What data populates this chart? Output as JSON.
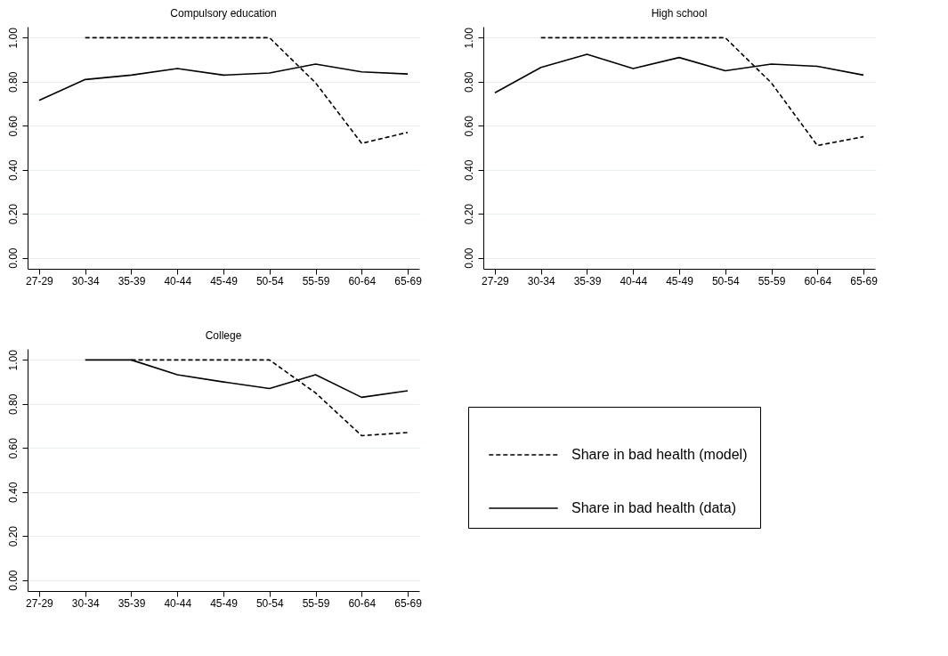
{
  "chart_data": [
    {
      "type": "line",
      "title": "Compulsory education",
      "categories": [
        "27-29",
        "30-34",
        "35-39",
        "40-44",
        "45-49",
        "50-54",
        "55-59",
        "60-64",
        "65-69"
      ],
      "series": [
        {
          "color": "#000000",
          "line_style": "dashed",
          "values": [
            null,
            1,
            1,
            1,
            1,
            1,
            0.795,
            0.52,
            0.57
          ]
        },
        {
          "color": "#000000",
          "line_style": "solid",
          "values": [
            0.715,
            0.81,
            0.83,
            0.86,
            0.83,
            0.84,
            0.88,
            0.845,
            0.835
          ]
        }
      ],
      "ylim": [
        -0.05,
        1.05
      ],
      "yticks": [
        {
          "value": 0,
          "label": "0.00"
        },
        {
          "value": 0.2,
          "label": "0.20"
        },
        {
          "value": 0.4,
          "label": "0.40"
        },
        {
          "value": 0.6,
          "label": "0.60"
        },
        {
          "value": 0.8,
          "label": "0.80"
        },
        {
          "value": 1,
          "label": "1.00"
        }
      ],
      "grid": "y"
    },
    {
      "type": "line",
      "title": "High school",
      "categories": [
        "27-29",
        "30-34",
        "35-39",
        "40-44",
        "45-49",
        "50-54",
        "55-59",
        "60-64",
        "65-69"
      ],
      "series": [
        {
          "color": "#000000",
          "line_style": "dashed",
          "values": [
            null,
            1,
            1,
            1,
            1,
            1,
            0.795,
            0.51,
            0.55
          ]
        },
        {
          "color": "#000000",
          "line_style": "solid",
          "values": [
            0.75,
            0.865,
            0.925,
            0.86,
            0.91,
            0.85,
            0.88,
            0.87,
            0.83
          ]
        }
      ],
      "ylim": [
        -0.05,
        1.05
      ],
      "yticks": [
        {
          "value": 0,
          "label": "0.00"
        },
        {
          "value": 0.2,
          "label": "0.20"
        },
        {
          "value": 0.4,
          "label": "0.40"
        },
        {
          "value": 0.6,
          "label": "0.60"
        },
        {
          "value": 0.8,
          "label": "0.80"
        },
        {
          "value": 1,
          "label": "1.00"
        }
      ],
      "grid": "y"
    },
    {
      "type": "line",
      "title": "College",
      "categories": [
        "27-29",
        "30-34",
        "35-39",
        "40-44",
        "45-49",
        "50-54",
        "55-59",
        "60-64",
        "65-69"
      ],
      "series": [
        {
          "name": "Share in bad health (model)",
          "color": "#000000",
          "line_style": "dashed",
          "values": [
            null,
            null,
            1,
            1,
            1,
            1,
            0.85,
            0.656,
            0.67
          ]
        },
        {
          "name": "Share in bad health (data)",
          "color": "#000000",
          "line_style": "solid",
          "values": [
            null,
            1,
            1,
            0.933,
            0.9,
            0.87,
            0.933,
            0.83,
            0.86
          ]
        }
      ],
      "ylim": [
        -0.05,
        1.05
      ],
      "yticks": [
        {
          "value": 0,
          "label": "0.00"
        },
        {
          "value": 0.2,
          "label": "0.20"
        },
        {
          "value": 0.4,
          "label": "0.40"
        },
        {
          "value": 0.6,
          "label": "0.60"
        },
        {
          "value": 0.8,
          "label": "0.80"
        },
        {
          "value": 1,
          "label": "1.00"
        }
      ],
      "grid": "y",
      "legend": "right"
    }
  ]
}
